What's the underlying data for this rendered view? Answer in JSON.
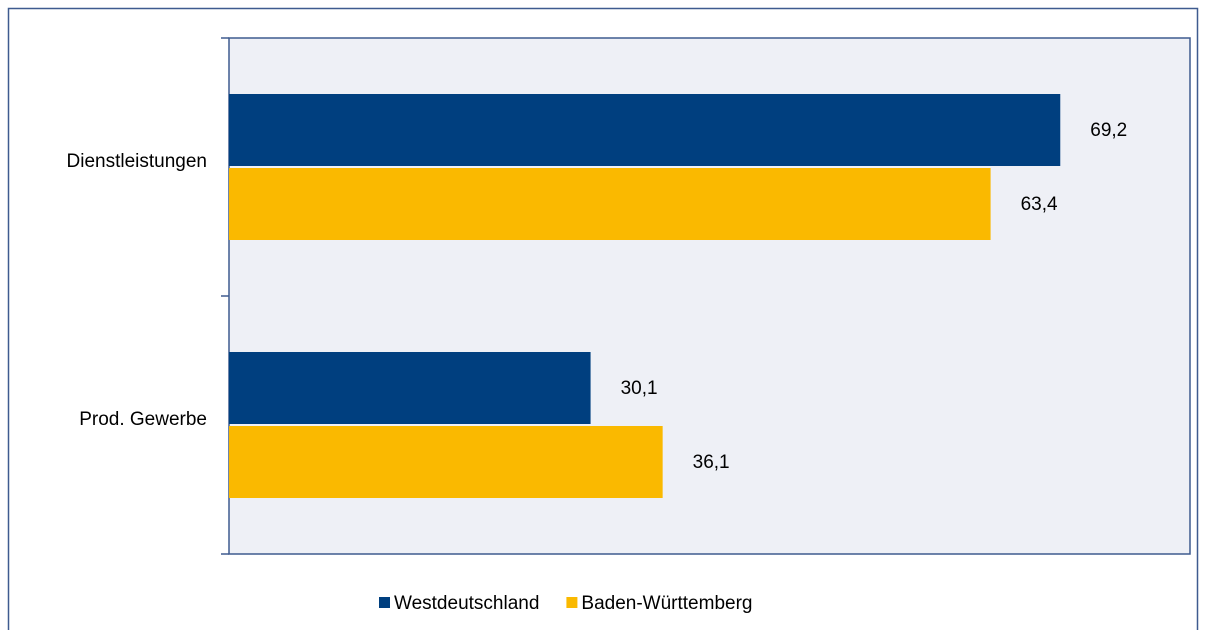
{
  "chart_data": {
    "type": "bar",
    "orientation": "horizontal",
    "categories": [
      "Dienstleistungen",
      "Prod. Gewerbe"
    ],
    "series": [
      {
        "name": "Westdeutschland",
        "color": "#003f7f",
        "values": [
          69.2,
          30.1
        ],
        "value_labels": [
          "69,2",
          "30,1"
        ]
      },
      {
        "name": "Baden-Württemberg",
        "color": "#fab900",
        "values": [
          63.4,
          36.1
        ],
        "value_labels": [
          "63,4",
          "36,1"
        ]
      }
    ],
    "xlim": [
      0,
      80
    ],
    "legend": "bottom"
  }
}
